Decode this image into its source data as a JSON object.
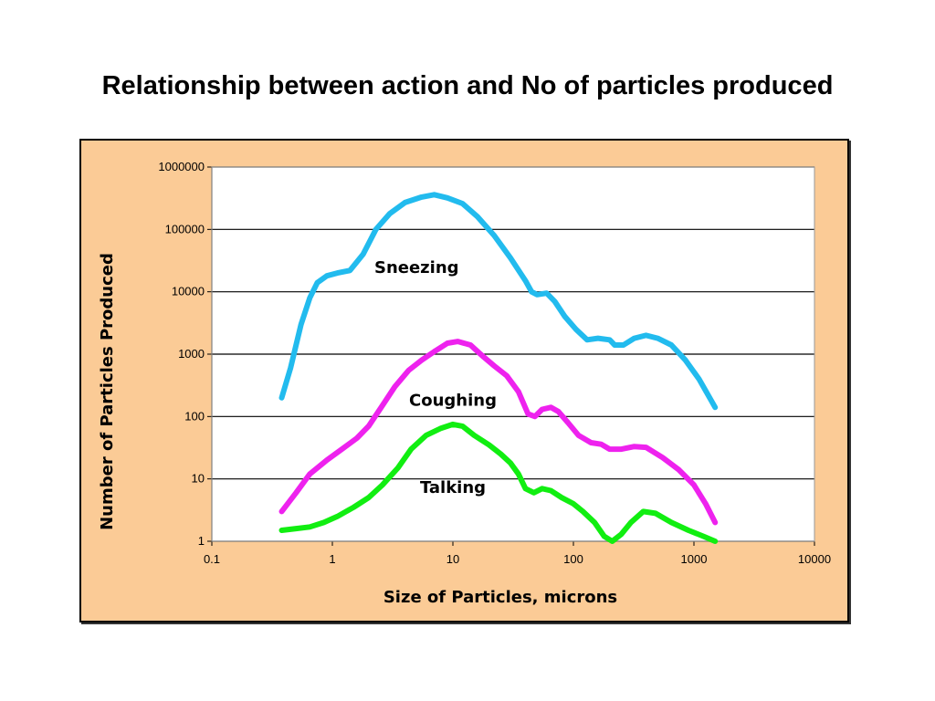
{
  "slide": {
    "title": "Relationship between action and No of particles produced"
  },
  "colors": {
    "panel_background": "#fbcb96",
    "plot_background": "#ffffff",
    "gridline": "#000000"
  },
  "chart_data": {
    "type": "line",
    "xlabel": "Size of Particles, microns",
    "ylabel": "Number of Particles Produced",
    "x_scale": "log",
    "y_scale": "log",
    "xlim": [
      0.1,
      10000
    ],
    "ylim": [
      1,
      1000000
    ],
    "x_ticks": [
      {
        "value": 0.1,
        "label": "0.1"
      },
      {
        "value": 1,
        "label": "1"
      },
      {
        "value": 10,
        "label": "10"
      },
      {
        "value": 100,
        "label": "100"
      },
      {
        "value": 1000,
        "label": "1000"
      },
      {
        "value": 10000,
        "label": "10000"
      }
    ],
    "y_ticks": [
      {
        "value": 1,
        "label": "1"
      },
      {
        "value": 10,
        "label": "10"
      },
      {
        "value": 100,
        "label": "100"
      },
      {
        "value": 1000,
        "label": "1000"
      },
      {
        "value": 10000,
        "label": "10000"
      },
      {
        "value": 100000,
        "label": "100000"
      },
      {
        "value": 1000000,
        "label": "1000000"
      }
    ],
    "horizontal_grid": true,
    "legend": "none (series labelled inline)",
    "series": [
      {
        "name": "Sneezing",
        "color": "#22bbee",
        "label_at": {
          "x": 5,
          "y": 20000
        },
        "points": [
          [
            0.38,
            200
          ],
          [
            0.45,
            600
          ],
          [
            0.55,
            3000
          ],
          [
            0.65,
            8000
          ],
          [
            0.75,
            14000
          ],
          [
            0.9,
            18000
          ],
          [
            1.1,
            20000
          ],
          [
            1.4,
            22000
          ],
          [
            1.8,
            40000
          ],
          [
            2.3,
            100000
          ],
          [
            3.0,
            180000
          ],
          [
            4.0,
            270000
          ],
          [
            5.5,
            330000
          ],
          [
            7.0,
            360000
          ],
          [
            9.0,
            320000
          ],
          [
            12,
            260000
          ],
          [
            16,
            160000
          ],
          [
            22,
            80000
          ],
          [
            30,
            35000
          ],
          [
            40,
            15000
          ],
          [
            45,
            10000
          ],
          [
            50,
            9000
          ],
          [
            60,
            9500
          ],
          [
            70,
            7000
          ],
          [
            85,
            4000
          ],
          [
            105,
            2500
          ],
          [
            130,
            1700
          ],
          [
            160,
            1800
          ],
          [
            200,
            1700
          ],
          [
            220,
            1400
          ],
          [
            260,
            1400
          ],
          [
            320,
            1800
          ],
          [
            400,
            2000
          ],
          [
            500,
            1800
          ],
          [
            650,
            1400
          ],
          [
            850,
            800
          ],
          [
            1100,
            400
          ],
          [
            1500,
            140
          ]
        ]
      },
      {
        "name": "Coughing",
        "color": "#ee22ee",
        "label_at": {
          "x": 10,
          "y": 150
        },
        "points": [
          [
            0.38,
            3
          ],
          [
            0.5,
            6
          ],
          [
            0.65,
            12
          ],
          [
            0.9,
            20
          ],
          [
            1.2,
            30
          ],
          [
            1.6,
            45
          ],
          [
            2.0,
            70
          ],
          [
            2.6,
            150
          ],
          [
            3.3,
            300
          ],
          [
            4.3,
            550
          ],
          [
            5.5,
            800
          ],
          [
            7.0,
            1100
          ],
          [
            9.0,
            1500
          ],
          [
            11,
            1600
          ],
          [
            14,
            1400
          ],
          [
            18,
            900
          ],
          [
            22,
            650
          ],
          [
            28,
            450
          ],
          [
            35,
            250
          ],
          [
            42,
            110
          ],
          [
            48,
            100
          ],
          [
            55,
            130
          ],
          [
            65,
            140
          ],
          [
            75,
            120
          ],
          [
            90,
            80
          ],
          [
            110,
            50
          ],
          [
            140,
            38
          ],
          [
            170,
            36
          ],
          [
            200,
            30
          ],
          [
            250,
            30
          ],
          [
            320,
            33
          ],
          [
            400,
            32
          ],
          [
            550,
            22
          ],
          [
            750,
            14
          ],
          [
            1000,
            8
          ],
          [
            1250,
            4
          ],
          [
            1500,
            2
          ]
        ]
      },
      {
        "name": "Talking",
        "color": "#11ee11",
        "label_at": {
          "x": 10,
          "y": 6
        },
        "points": [
          [
            0.38,
            1.5
          ],
          [
            0.5,
            1.6
          ],
          [
            0.65,
            1.7
          ],
          [
            0.85,
            2
          ],
          [
            1.1,
            2.5
          ],
          [
            1.5,
            3.5
          ],
          [
            2.0,
            5
          ],
          [
            2.6,
            8
          ],
          [
            3.5,
            15
          ],
          [
            4.5,
            30
          ],
          [
            6.0,
            50
          ],
          [
            8.0,
            65
          ],
          [
            10,
            75
          ],
          [
            12,
            70
          ],
          [
            15,
            50
          ],
          [
            20,
            35
          ],
          [
            25,
            25
          ],
          [
            30,
            18
          ],
          [
            35,
            12
          ],
          [
            40,
            7
          ],
          [
            47,
            6
          ],
          [
            55,
            7
          ],
          [
            65,
            6.5
          ],
          [
            80,
            5
          ],
          [
            100,
            4
          ],
          [
            120,
            3
          ],
          [
            150,
            2
          ],
          [
            180,
            1.2
          ],
          [
            210,
            1
          ],
          [
            250,
            1.3
          ],
          [
            300,
            2
          ],
          [
            380,
            3
          ],
          [
            480,
            2.8
          ],
          [
            650,
            2
          ],
          [
            900,
            1.5
          ],
          [
            1200,
            1.2
          ],
          [
            1500,
            1
          ]
        ]
      }
    ]
  }
}
